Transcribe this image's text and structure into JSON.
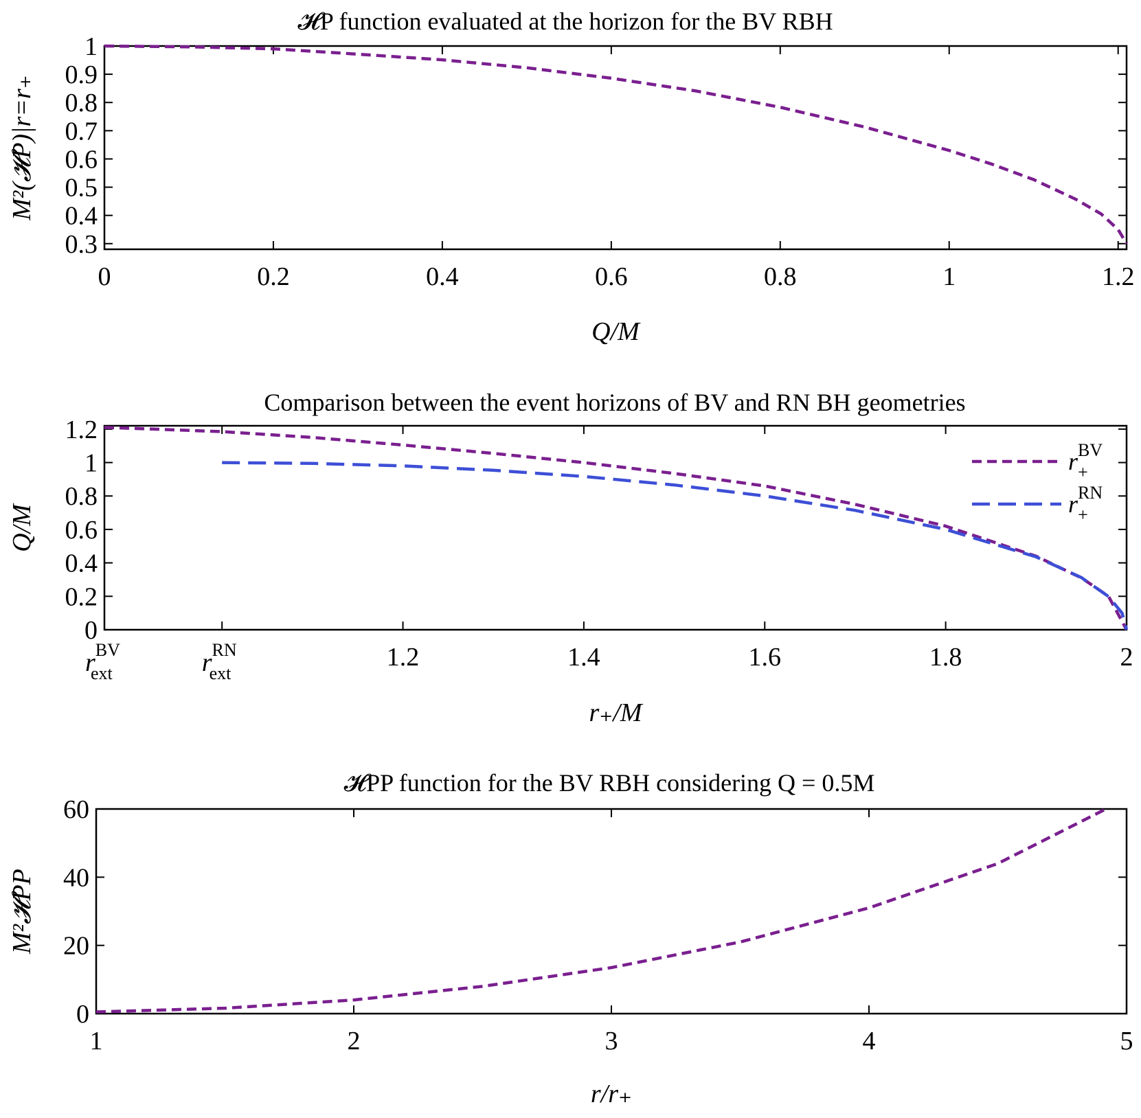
{
  "colors": {
    "purple": "#7a1f8f",
    "blue": "#3d4fd6"
  },
  "chart_data": [
    {
      "type": "line",
      "title": "𝓗P function evaluated at the horizon for the BV RBH",
      "xlabel": "Q/M",
      "ylabel": "M²(𝓗P)|r=r₊",
      "xlim": [
        0,
        1.21
      ],
      "ylim": [
        0.28,
        1.0
      ],
      "xticks": [
        0,
        0.2,
        0.4,
        0.6,
        0.8,
        1.0,
        1.2
      ],
      "xtick_labels": [
        "0",
        "0.2",
        "0.4",
        "0.6",
        "0.8",
        "1",
        "1.2"
      ],
      "yticks": [
        0.3,
        0.4,
        0.5,
        0.6,
        0.7,
        0.8,
        0.9,
        1.0
      ],
      "ytick_labels": [
        "0.3",
        "0.4",
        "0.5",
        "0.6",
        "0.7",
        "0.8",
        "0.9",
        "1"
      ],
      "series": [
        {
          "color": "#7a1f8f",
          "dash": "dashed",
          "x": [
            0,
            0.1,
            0.2,
            0.3,
            0.4,
            0.5,
            0.6,
            0.7,
            0.8,
            0.9,
            1.0,
            1.05,
            1.1,
            1.15,
            1.18,
            1.2,
            1.21
          ],
          "y": [
            1.0,
            0.997,
            0.99,
            0.971,
            0.951,
            0.923,
            0.886,
            0.841,
            0.783,
            0.713,
            0.63,
            0.582,
            0.527,
            0.457,
            0.405,
            0.35,
            0.3
          ]
        }
      ]
    },
    {
      "type": "line",
      "title": "Comparison between the event horizons of BV and RN BH geometries",
      "xlabel": "r₊/M",
      "ylabel": "Q/M",
      "xlim": [
        0.87,
        2.0
      ],
      "ylim": [
        0,
        1.22
      ],
      "xticks": [
        0.87,
        1.0,
        1.2,
        1.4,
        1.6,
        1.8,
        2.0
      ],
      "xtick_labels": [
        "",
        "",
        "1.2",
        "1.4",
        "1.6",
        "1.8",
        "2"
      ],
      "special_ticks": [
        {
          "x": 0.87,
          "base": "r",
          "sup": "BV",
          "sub": "ext"
        },
        {
          "x": 1.0,
          "base": "r",
          "sup": "RN",
          "sub": "ext"
        }
      ],
      "yticks": [
        0,
        0.2,
        0.4,
        0.6,
        0.8,
        1.0,
        1.2
      ],
      "ytick_labels": [
        "0",
        "0.2",
        "0.4",
        "0.6",
        "0.8",
        "1",
        "1.2"
      ],
      "legend": {
        "position": "top-right"
      },
      "series": [
        {
          "name": "r₊BV",
          "legend": {
            "base": "r",
            "sup": "BV",
            "sub": "+"
          },
          "color": "#7a1f8f",
          "dash": "dashed",
          "x": [
            0.87,
            0.9,
            1.0,
            1.1,
            1.2,
            1.3,
            1.4,
            1.5,
            1.6,
            1.7,
            1.8,
            1.9,
            1.95,
            1.98,
            2.0
          ],
          "y": [
            1.21,
            1.205,
            1.185,
            1.15,
            1.105,
            1.055,
            1.0,
            0.935,
            0.86,
            0.75,
            0.62,
            0.44,
            0.31,
            0.2,
            0.0
          ]
        },
        {
          "name": "r₊RN",
          "legend": {
            "base": "r",
            "sup": "RN",
            "sub": "+"
          },
          "color": "#3d4fd6",
          "dash": "longdashed",
          "x": [
            1.0,
            1.1,
            1.2,
            1.3,
            1.4,
            1.5,
            1.6,
            1.7,
            1.8,
            1.9,
            1.95,
            1.98,
            1.995,
            2.0
          ],
          "y": [
            1.0,
            0.995,
            0.98,
            0.954,
            0.917,
            0.866,
            0.8,
            0.714,
            0.6,
            0.436,
            0.312,
            0.199,
            0.1,
            0.0
          ]
        }
      ]
    },
    {
      "type": "line",
      "title": "𝓗PP function for the BV RBH considering Q = 0.5M",
      "xlabel": "r/r₊",
      "ylabel": "M²𝓗PP",
      "xlim": [
        1,
        5
      ],
      "ylim": [
        0,
        60
      ],
      "xticks": [
        1,
        2,
        3,
        4,
        5
      ],
      "xtick_labels": [
        "1",
        "2",
        "3",
        "4",
        "5"
      ],
      "yticks": [
        0,
        20,
        40,
        60
      ],
      "ytick_labels": [
        "0",
        "20",
        "40",
        "60"
      ],
      "series": [
        {
          "color": "#7a1f8f",
          "dash": "dashed",
          "x": [
            1.0,
            1.5,
            2.0,
            2.5,
            3.0,
            3.5,
            4.0,
            4.5,
            4.92
          ],
          "y": [
            0.5,
            1.6,
            4.0,
            8.0,
            13.5,
            21.0,
            31.0,
            44.0,
            60.0
          ]
        }
      ]
    }
  ]
}
